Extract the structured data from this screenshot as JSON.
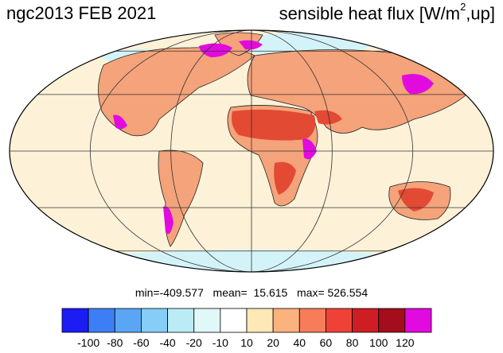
{
  "header": {
    "left_title": "ngc2013 FEB 2021",
    "right_title_prefix": "sensible heat flux [W/m",
    "right_title_sup": "2",
    "right_title_suffix": ",up]"
  },
  "stats": {
    "text": "min=-409.577   mean=  15.615   max= 526.554",
    "min": -409.577,
    "mean": 15.615,
    "max": 526.554
  },
  "colorbar": {
    "levels": [
      -100,
      -80,
      -60,
      -40,
      -20,
      -10,
      10,
      20,
      40,
      60,
      80,
      100,
      120
    ],
    "labels": [
      "-100",
      "-80",
      "-60",
      "-40",
      "-20",
      "-10",
      "10",
      "20",
      "40",
      "60",
      "80",
      "100",
      "120"
    ],
    "colors": [
      "#1c1cf5",
      "#3d7ef6",
      "#5aa6f5",
      "#86cdf7",
      "#b9ecf5",
      "#e1f8f8",
      "#ffffff",
      "#fde8b6",
      "#fbb27c",
      "#f77c5a",
      "#ee4236",
      "#cf1d24",
      "#a30d1c",
      "#e10be0"
    ]
  },
  "map": {
    "projection": "mollweide",
    "ocean_color": "#fdf1d8",
    "land_base_color": "#f4a37a",
    "desert_color": "#e34a33",
    "hotspot_color": "#e10be0",
    "cold_color": "#d4f3f8",
    "gridline_color": "#333333",
    "coast_color": "#222222"
  }
}
